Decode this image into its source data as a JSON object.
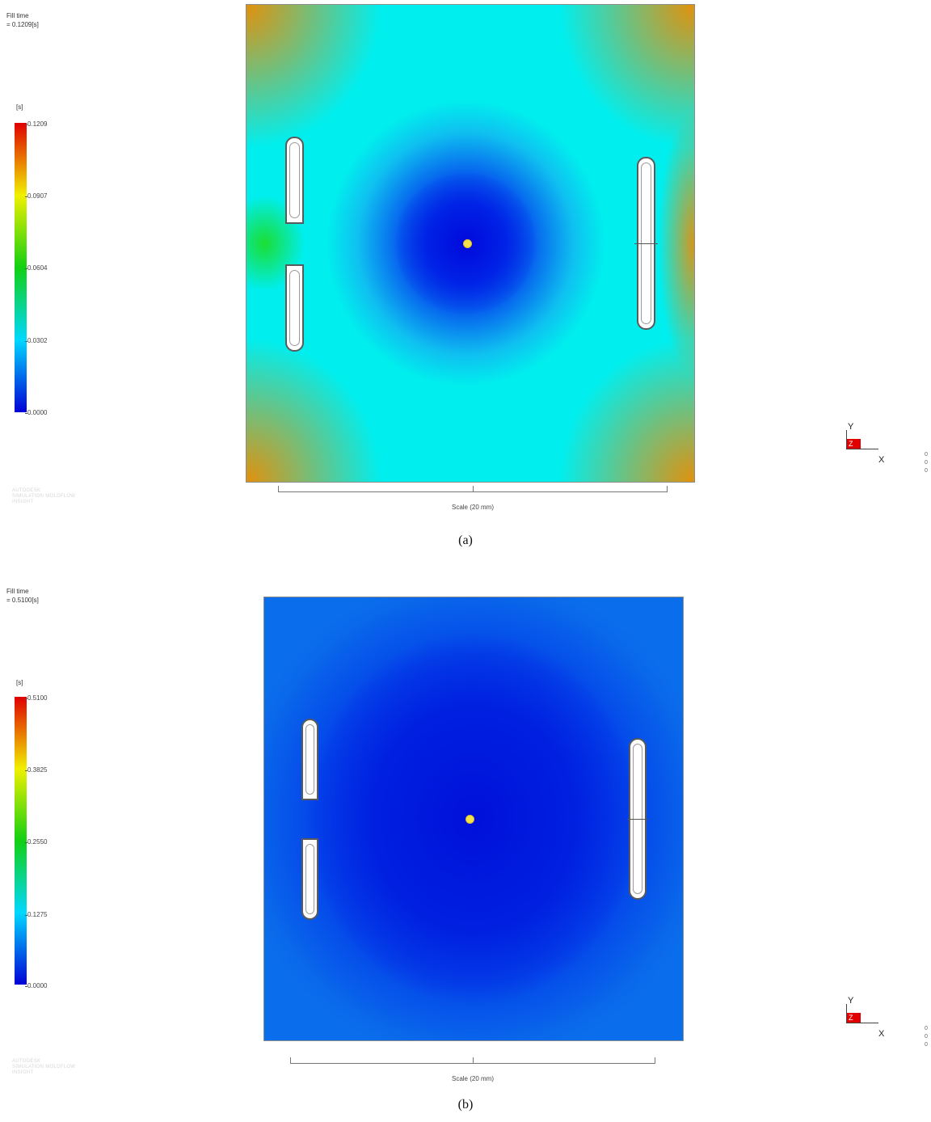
{
  "panels": [
    {
      "fill_time_title": "Fill time",
      "fill_time_value": "= 0.1209[s]",
      "unit": "[s]",
      "legend_ticks": [
        "0.1209",
        "0.0907",
        "0.0604",
        "0.0302",
        "0.0000"
      ],
      "watermark": [
        "AUTODESK",
        "SIMULATION MOLDFLOW",
        "INSIGHT"
      ],
      "scale_label": "Scale (20 mm)",
      "axis_y": "Y",
      "axis_x": "X",
      "axis_z": "Z",
      "side_digits": [
        "0",
        "0",
        "0"
      ],
      "caption": "(a)"
    },
    {
      "fill_time_title": "Fill time",
      "fill_time_value": "= 0.5100[s]",
      "unit": "[s]",
      "legend_ticks": [
        "0.5100",
        "0.3825",
        "0.2550",
        "0.1275",
        "0.0000"
      ],
      "watermark": [
        "AUTODESK",
        "SIMULATION MOLDFLOW",
        "INSIGHT"
      ],
      "scale_label": "Scale (20 mm)",
      "axis_y": "Y",
      "axis_x": "X",
      "axis_z": "Z",
      "side_digits": [
        "0",
        "0",
        "0"
      ],
      "caption": "(b)"
    }
  ],
  "colors": {
    "legend_low": "#0000d8",
    "legend_quarter": "#00d8ff",
    "legend_mid": "#12d012",
    "legend_three_quarter": "#f0f000",
    "legend_high": "#e00000",
    "gate": "#f4e24a"
  }
}
